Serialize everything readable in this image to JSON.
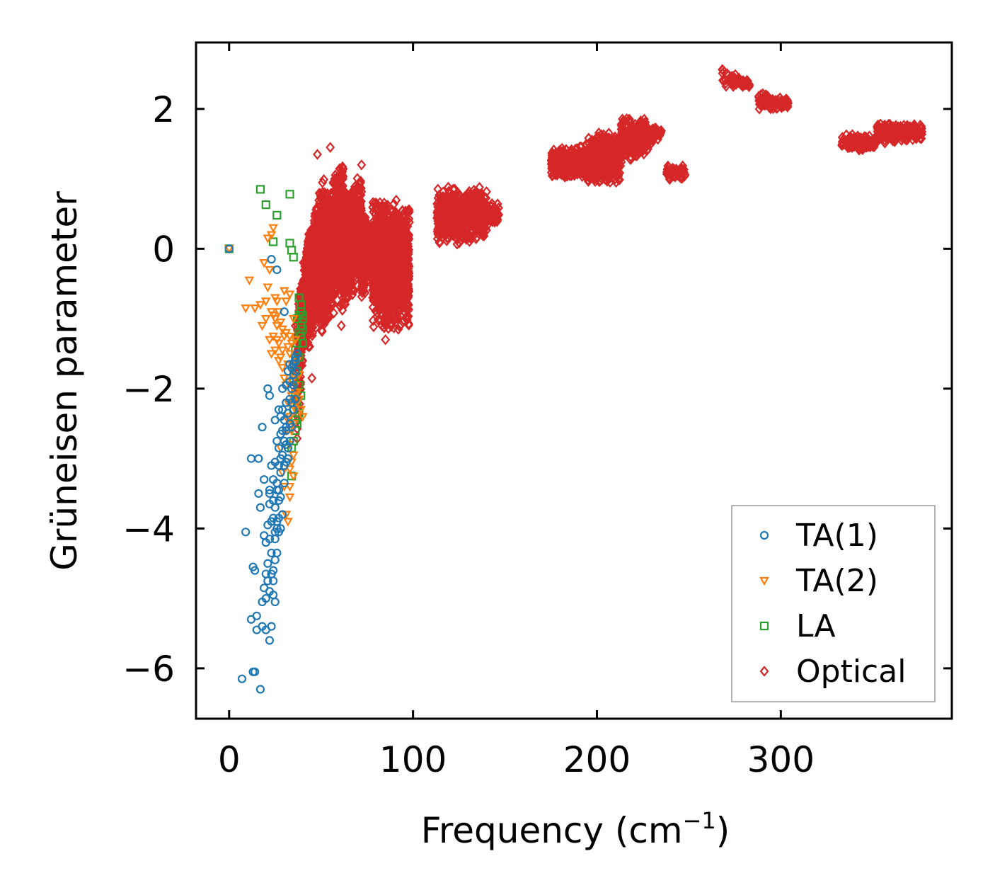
{
  "chart_data": {
    "type": "scatter",
    "title": "",
    "xlabel": "Frequency (cm",
    "xlabel_sup": "−1",
    "xlabel_end": ")",
    "ylabel": "Grüneisen parameter",
    "xlim": [
      -18,
      393
    ],
    "ylim": [
      -6.72,
      2.95
    ],
    "xticks": [
      0,
      100,
      200,
      300
    ],
    "xtick_labels": [
      "0",
      "100",
      "200",
      "300"
    ],
    "yticks": [
      -6,
      -4,
      -2,
      0,
      2
    ],
    "ytick_labels": [
      "−6",
      "−4",
      "−2",
      "0",
      "2"
    ],
    "grid": false,
    "legend_position": "bottom-right",
    "series": [
      {
        "name": "TA(1)",
        "marker": "circle",
        "color": "#1f77b4",
        "points": [
          [
            0,
            0
          ],
          [
            7,
            -6.15
          ],
          [
            9,
            -4.05
          ],
          [
            12,
            -5.3
          ],
          [
            13,
            -6.05
          ],
          [
            14,
            -6.05
          ],
          [
            15,
            -5.25
          ],
          [
            13,
            -4.55
          ],
          [
            16,
            -3.5
          ],
          [
            17,
            -3.7
          ],
          [
            18,
            -2.55
          ],
          [
            19,
            -4.1
          ],
          [
            20,
            -4.2
          ],
          [
            21,
            -3.95
          ],
          [
            22,
            -3.45
          ],
          [
            23,
            -3.9
          ],
          [
            24,
            -3.6
          ],
          [
            25,
            -3.05
          ],
          [
            26,
            -3.35
          ],
          [
            27,
            -3.45
          ],
          [
            28,
            -3.2
          ],
          [
            29,
            -2.95
          ],
          [
            30,
            -2.75
          ],
          [
            31,
            -2.55
          ],
          [
            32,
            -2.35
          ],
          [
            33,
            -2.15
          ],
          [
            34,
            -2.0
          ],
          [
            35,
            -1.8
          ],
          [
            36,
            -1.6
          ],
          [
            37,
            -1.5
          ],
          [
            33,
            -1.65
          ],
          [
            31,
            -1.95
          ],
          [
            29,
            -2.3
          ],
          [
            28,
            -2.65
          ],
          [
            27,
            -2.85
          ],
          [
            26,
            -3.45
          ],
          [
            24,
            -3.3
          ],
          [
            22,
            -2.1
          ],
          [
            22,
            -3.65
          ],
          [
            21,
            -4.5
          ],
          [
            20,
            -4.65
          ],
          [
            19,
            -4.85
          ],
          [
            18,
            -5.05
          ],
          [
            20,
            -5.45
          ],
          [
            22,
            -5.6
          ],
          [
            23,
            -5.4
          ],
          [
            24,
            -4.95
          ],
          [
            25,
            -5.05
          ],
          [
            24,
            -4.6
          ],
          [
            23,
            -4.35
          ],
          [
            25,
            -4.15
          ],
          [
            26,
            -4.0
          ],
          [
            27,
            -3.85
          ],
          [
            28,
            -3.55
          ],
          [
            30,
            -3.35
          ],
          [
            31,
            -3.05
          ],
          [
            32,
            -2.85
          ],
          [
            34,
            -2.55
          ],
          [
            35,
            -2.3
          ],
          [
            36,
            -2.15
          ],
          [
            12,
            -3.0
          ],
          [
            16,
            -3.0
          ],
          [
            17,
            -6.3
          ],
          [
            15,
            -5.45
          ],
          [
            18,
            -5.4
          ],
          [
            23,
            -0.15
          ],
          [
            26,
            -0.3
          ],
          [
            30,
            -0.9
          ],
          [
            14,
            -4.6
          ],
          [
            19,
            -3.3
          ],
          [
            21,
            -2.0
          ],
          [
            25,
            -2.45
          ],
          [
            27,
            -2.3
          ],
          [
            29,
            -2.0
          ],
          [
            31,
            -2.6
          ],
          [
            33,
            -2.5
          ],
          [
            34,
            -2.2
          ],
          [
            35,
            -1.95
          ],
          [
            36,
            -1.75
          ],
          [
            30,
            -3.1
          ],
          [
            29,
            -3.8
          ],
          [
            28,
            -4.0
          ],
          [
            26,
            -4.35
          ],
          [
            24,
            -4.75
          ],
          [
            22,
            -4.9
          ],
          [
            20,
            -5.0
          ],
          [
            26,
            -3.9
          ],
          [
            27,
            -3.6
          ],
          [
            25,
            -4.45
          ],
          [
            23,
            -4.65
          ],
          [
            21,
            -4.75
          ],
          [
            28,
            -2.4
          ],
          [
            29,
            -2.6
          ],
          [
            31,
            -2.2
          ],
          [
            33,
            -1.9
          ],
          [
            35,
            -1.65
          ],
          [
            32,
            -1.75
          ],
          [
            30,
            -2.45
          ],
          [
            34,
            -1.7
          ],
          [
            36,
            -1.55
          ],
          [
            33,
            -2.75
          ],
          [
            32,
            -3.0
          ],
          [
            31,
            -2.8
          ],
          [
            25,
            -3.7
          ],
          [
            24,
            -3.85
          ],
          [
            22,
            -3.5
          ],
          [
            23,
            -3.1
          ],
          [
            26,
            -2.75
          ],
          [
            27,
            -3.1
          ],
          [
            28,
            -3.0
          ],
          [
            22,
            -4.15
          ],
          [
            25,
            -4.05
          ],
          [
            27,
            -4.05
          ]
        ]
      },
      {
        "name": "TA(2)",
        "marker": "triangle-down",
        "color": "#ff7f0e",
        "points": [
          [
            0,
            0
          ],
          [
            9,
            -0.85
          ],
          [
            11,
            -0.45
          ],
          [
            14,
            -0.85
          ],
          [
            17,
            -0.8
          ],
          [
            19,
            -0.2
          ],
          [
            20,
            -0.75
          ],
          [
            21,
            -0.55
          ],
          [
            22,
            -0.3
          ],
          [
            23,
            -0.9
          ],
          [
            24,
            -0.95
          ],
          [
            25,
            -0.7
          ],
          [
            26,
            -0.75
          ],
          [
            27,
            -0.9
          ],
          [
            28,
            -1.05
          ],
          [
            29,
            -1.15
          ],
          [
            30,
            -1.25
          ],
          [
            31,
            -1.2
          ],
          [
            32,
            -1.4
          ],
          [
            33,
            -1.5
          ],
          [
            34,
            -1.65
          ],
          [
            35,
            -1.8
          ],
          [
            36,
            -1.95
          ],
          [
            37,
            -2.05
          ],
          [
            38,
            -2.15
          ],
          [
            39,
            -2.3
          ],
          [
            40,
            -2.4
          ],
          [
            34,
            -2.6
          ],
          [
            35,
            -2.95
          ],
          [
            33,
            -3.15
          ],
          [
            33,
            -3.55
          ],
          [
            32,
            -3.9
          ],
          [
            31,
            -3.8
          ],
          [
            30,
            -3.4
          ],
          [
            29,
            -3.2
          ],
          [
            28,
            -2.85
          ],
          [
            27,
            -1.35
          ],
          [
            26,
            -1.1
          ],
          [
            25,
            -1.0
          ],
          [
            23,
            -1.5
          ],
          [
            22,
            -1.3
          ],
          [
            20,
            -1.0
          ],
          [
            18,
            -1.1
          ],
          [
            23,
            0.2
          ],
          [
            24,
            0.3
          ],
          [
            21,
            0.15
          ],
          [
            30,
            -0.6
          ],
          [
            31,
            -0.75
          ],
          [
            33,
            -0.65
          ],
          [
            35,
            -1.0
          ],
          [
            36,
            -1.3
          ],
          [
            37,
            -1.6
          ],
          [
            38,
            -1.8
          ],
          [
            34,
            -2.1
          ],
          [
            32,
            -2.2
          ],
          [
            31,
            -2.6
          ],
          [
            33,
            -2.8
          ],
          [
            35,
            -2.5
          ],
          [
            36,
            -2.3
          ],
          [
            37,
            -2.2
          ],
          [
            29,
            -1.7
          ],
          [
            28,
            -1.55
          ],
          [
            30,
            -1.85
          ],
          [
            31,
            -1.95
          ],
          [
            33,
            -1.25
          ],
          [
            34,
            -1.35
          ],
          [
            26,
            -1.3
          ],
          [
            24,
            -1.25
          ],
          [
            25,
            -1.45
          ],
          [
            27,
            -1.6
          ],
          [
            29,
            -1.45
          ],
          [
            32,
            -1.65
          ],
          [
            34,
            -1.9
          ],
          [
            36,
            -2.05
          ],
          [
            35,
            -2.25
          ],
          [
            33,
            -2.4
          ],
          [
            32,
            -2.45
          ],
          [
            34,
            -3.05
          ],
          [
            35,
            -3.25
          ],
          [
            33,
            -3.4
          ]
        ]
      },
      {
        "name": "LA",
        "marker": "square",
        "color": "#2ca02c",
        "points": [
          [
            0,
            0
          ],
          [
            17,
            0.85
          ],
          [
            20,
            0.63
          ],
          [
            26,
            0.48
          ],
          [
            33,
            0.78
          ],
          [
            24,
            0.1
          ],
          [
            33,
            0.08
          ],
          [
            34,
            -0.02
          ],
          [
            35,
            -0.12
          ],
          [
            38,
            -0.7
          ],
          [
            39,
            -0.8
          ],
          [
            40,
            -0.95
          ],
          [
            39,
            -1.1
          ],
          [
            38,
            -1.2
          ],
          [
            40,
            -1.0
          ],
          [
            37,
            -1.35
          ],
          [
            36,
            -1.6
          ],
          [
            35,
            -1.85
          ],
          [
            36,
            -2.05
          ],
          [
            37,
            -2.2
          ],
          [
            38,
            -2.35
          ],
          [
            37,
            -2.5
          ],
          [
            36,
            -2.6
          ],
          [
            35,
            -2.75
          ],
          [
            34,
            -3.25
          ],
          [
            39,
            -0.9
          ],
          [
            40,
            -1.15
          ],
          [
            38,
            -0.95
          ],
          [
            36,
            -1.45
          ],
          [
            37,
            -1.75
          ],
          [
            38,
            -1.95
          ],
          [
            39,
            -2.1
          ],
          [
            35,
            -2.3
          ],
          [
            36,
            -2.45
          ],
          [
            34,
            -2.85
          ],
          [
            37,
            -1.0
          ],
          [
            39,
            -1.25
          ],
          [
            40,
            -1.35
          ],
          [
            38,
            -1.55
          ]
        ]
      },
      {
        "name": "Optical",
        "marker": "diamond",
        "color": "#d62728",
        "clusters": [
          {
            "x": [
              37,
              44
            ],
            "yb": [
              -2.8,
              -0.2
            ],
            "yt": [
              -0.6,
              0.3
            ],
            "n": 500
          },
          {
            "x": [
              42,
              52
            ],
            "yb": [
              -1.6,
              -0.8
            ],
            "yt": [
              0.1,
              1.2
            ],
            "n": 700
          },
          {
            "x": [
              50,
              62
            ],
            "yb": [
              -1.4,
              -0.6
            ],
            "yt": [
              0.6,
              1.4
            ],
            "n": 900
          },
          {
            "x": [
              60,
              72
            ],
            "yb": [
              -1.1,
              -0.4
            ],
            "yt": [
              0.8,
              1.1
            ],
            "n": 700
          },
          {
            "x": [
              72,
              80
            ],
            "yb": [
              -0.9,
              -0.1
            ],
            "yt": [
              0.6,
              0.2
            ],
            "n": 350
          },
          {
            "x": [
              78,
              98
            ],
            "yb": [
              -1.2,
              -1.2
            ],
            "yt": [
              0.8,
              0.7
            ],
            "n": 1200
          },
          {
            "x": [
              113,
              140
            ],
            "yb": [
              0.0,
              0.1
            ],
            "yt": [
              0.9,
              0.9
            ],
            "n": 500
          },
          {
            "x": [
              140,
              147
            ],
            "yb": [
              0.3,
              0.3
            ],
            "yt": [
              0.7,
              0.7
            ],
            "n": 60
          },
          {
            "x": [
              175,
              195
            ],
            "yb": [
              1.0,
              1.0
            ],
            "yt": [
              1.45,
              1.5
            ],
            "n": 400
          },
          {
            "x": [
              195,
              213
            ],
            "yb": [
              0.9,
              0.9
            ],
            "yt": [
              1.65,
              1.7
            ],
            "n": 400
          },
          {
            "x": [
              213,
              228
            ],
            "yb": [
              1.2,
              1.35
            ],
            "yt": [
              1.9,
              1.85
            ],
            "n": 300
          },
          {
            "x": [
              225,
              235
            ],
            "yb": [
              1.45,
              1.55
            ],
            "yt": [
              1.75,
              1.75
            ],
            "n": 80
          },
          {
            "x": [
              238,
              248
            ],
            "yb": [
              0.98,
              0.98
            ],
            "yt": [
              1.2,
              1.2
            ],
            "n": 60
          },
          {
            "x": [
              268,
              283
            ],
            "yb": [
              2.3,
              2.3
            ],
            "yt": [
              2.6,
              2.4
            ],
            "n": 80
          },
          {
            "x": [
              288,
              304
            ],
            "yb": [
              1.98,
              2.0
            ],
            "yt": [
              2.25,
              2.15
            ],
            "n": 90
          },
          {
            "x": [
              333,
              352
            ],
            "yb": [
              1.38,
              1.42
            ],
            "yt": [
              1.65,
              1.62
            ],
            "n": 120
          },
          {
            "x": [
              352,
              377
            ],
            "yb": [
              1.5,
              1.55
            ],
            "yt": [
              1.8,
              1.8
            ],
            "n": 220
          }
        ],
        "outliers": [
          [
            48,
            1.35
          ],
          [
            55,
            1.45
          ],
          [
            72,
            1.2
          ],
          [
            45,
            -1.85
          ],
          [
            85,
            -1.3
          ],
          [
            36,
            -1.1
          ],
          [
            61,
            -1.1
          ]
        ]
      }
    ]
  }
}
